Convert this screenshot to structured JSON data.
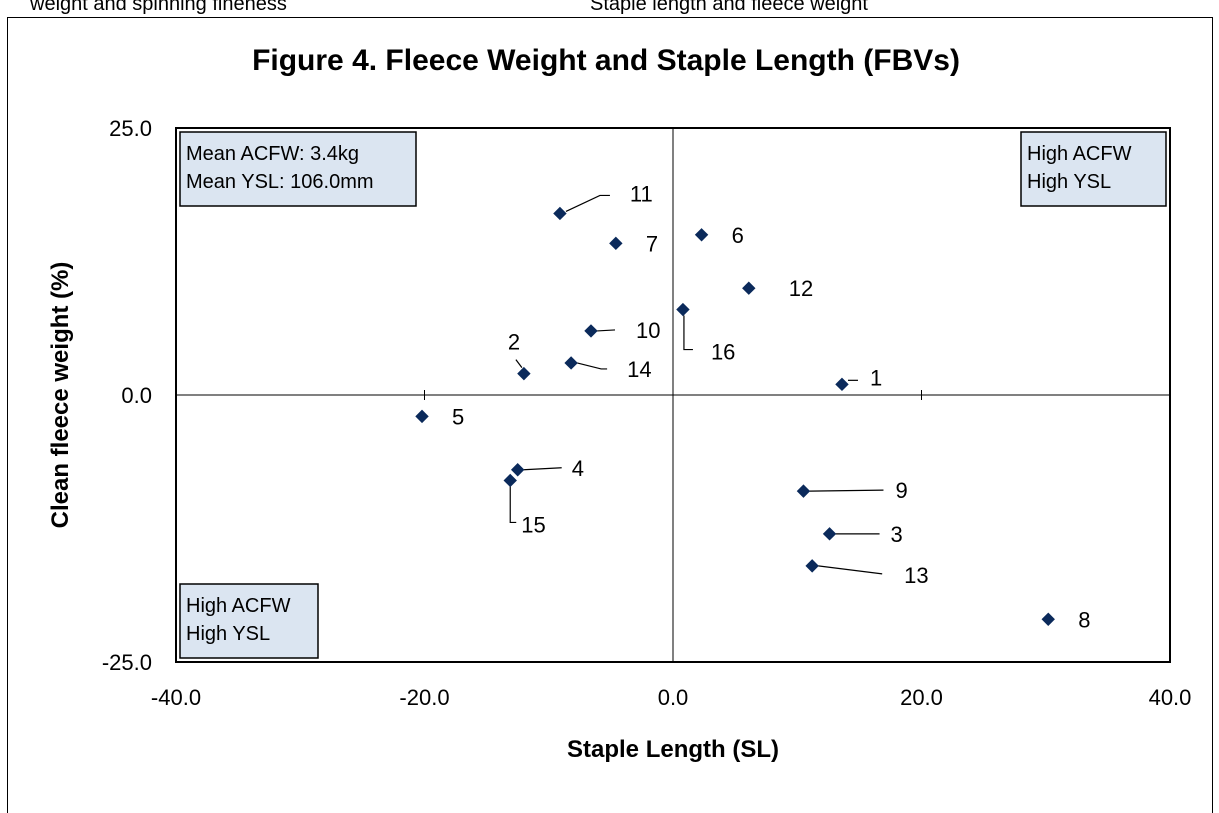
{
  "top_text": {
    "left": "weight and spinning fineness",
    "right": "Staple length and fleece weight"
  },
  "chart_data": {
    "type": "scatter",
    "title": "Figure 4.  Fleece Weight and Staple Length (FBVs)",
    "xlabel": "Staple Length (SL)",
    "ylabel": "Clean fleece weight (%)",
    "xlim": [
      -40,
      40
    ],
    "ylim": [
      -25,
      25
    ],
    "xticks": [
      -40,
      -20,
      0,
      20,
      40
    ],
    "xtick_labels": [
      "-40.0",
      "-20.0",
      "0.0",
      "20.0",
      "40.0"
    ],
    "yticks": [
      25,
      0,
      -25
    ],
    "ytick_labels": [
      "25.0",
      "0.0",
      "-25.0"
    ],
    "grid": false,
    "marker_color": "#0b2a5b",
    "points": [
      {
        "label": "1",
        "x": 13.6,
        "y": 1.0
      },
      {
        "label": "2",
        "x": -12.0,
        "y": 2.0
      },
      {
        "label": "3",
        "x": 12.6,
        "y": -13.0
      },
      {
        "label": "4",
        "x": -12.5,
        "y": -7.0
      },
      {
        "label": "5",
        "x": -20.2,
        "y": -2.0
      },
      {
        "label": "6",
        "x": 2.3,
        "y": 15.0
      },
      {
        "label": "7",
        "x": -4.6,
        "y": 14.2
      },
      {
        "label": "8",
        "x": 30.2,
        "y": -21.0
      },
      {
        "label": "9",
        "x": 10.5,
        "y": -9.0
      },
      {
        "label": "10",
        "x": -6.6,
        "y": 6.0
      },
      {
        "label": "11",
        "x": -9.1,
        "y": 17.0
      },
      {
        "label": "12",
        "x": 6.1,
        "y": 10.0
      },
      {
        "label": "13",
        "x": 11.2,
        "y": -16.0
      },
      {
        "label": "14",
        "x": -8.2,
        "y": 3.0
      },
      {
        "label": "15",
        "x": -13.1,
        "y": -8.0
      },
      {
        "label": "16",
        "x": 0.8,
        "y": 8.0
      }
    ],
    "annotations": [
      {
        "lines": [
          "Mean ACFW: 3.4kg",
          "Mean YSL: 106.0mm"
        ],
        "position": "top-left"
      },
      {
        "lines": [
          "High ACFW",
          "High YSL"
        ],
        "position": "top-right"
      },
      {
        "lines": [
          "High ACFW",
          "High YSL"
        ],
        "position": "bottom-left"
      }
    ]
  }
}
